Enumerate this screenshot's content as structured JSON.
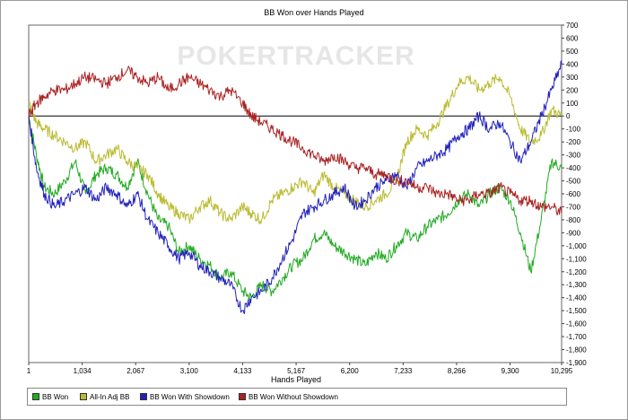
{
  "chart_data": {
    "type": "line",
    "title": "BB Won over Hands Played",
    "xlabel": "Hands Played",
    "ylabel": "",
    "watermark": "POKERTRACKER",
    "xlim": [
      1,
      10295
    ],
    "ylim": [
      -1900,
      700
    ],
    "x_ticks": [
      "1",
      "1,034",
      "2,067",
      "3,100",
      "4,133",
      "5,167",
      "6,200",
      "7,233",
      "8,266",
      "9,300",
      "10,295"
    ],
    "x_tick_values": [
      1,
      1034,
      2067,
      3100,
      4133,
      5167,
      6200,
      7233,
      8266,
      9300,
      10295
    ],
    "y_ticks": [
      "700",
      "600",
      "500",
      "400",
      "300",
      "200",
      "100",
      "0",
      "-100",
      "-200",
      "-300",
      "-400",
      "-500",
      "-600",
      "-700",
      "-800",
      "-900",
      "-1,000",
      "-1,100",
      "-1,200",
      "-1,300",
      "-1,400",
      "-1,500",
      "-1,600",
      "-1,700",
      "-1,800",
      "-1,900"
    ],
    "y_tick_values": [
      700,
      600,
      500,
      400,
      300,
      200,
      100,
      0,
      -100,
      -200,
      -300,
      -400,
      -500,
      -600,
      -700,
      -800,
      -900,
      -1000,
      -1100,
      -1200,
      -1300,
      -1400,
      -1500,
      -1600,
      -1700,
      -1800,
      -1900
    ],
    "legend_position": "bottom",
    "series": [
      {
        "name": "BB Won",
        "color": "#22aa22",
        "x": [
          1,
          150,
          300,
          500,
          700,
          900,
          1100,
          1300,
          1500,
          1700,
          1900,
          2100,
          2300,
          2500,
          2700,
          2900,
          3100,
          3300,
          3500,
          3700,
          3900,
          4133,
          4300,
          4500,
          4700,
          4900,
          5100,
          5300,
          5500,
          5700,
          5900,
          6100,
          6300,
          6500,
          6700,
          6900,
          7100,
          7300,
          7500,
          7700,
          7900,
          8100,
          8300,
          8500,
          8700,
          8900,
          9100,
          9300,
          9500,
          9700,
          9900,
          10100,
          10295
        ],
        "values": [
          0,
          -300,
          -550,
          -600,
          -500,
          -350,
          -600,
          -450,
          -400,
          -450,
          -550,
          -350,
          -600,
          -800,
          -850,
          -1050,
          -1000,
          -1100,
          -1150,
          -1250,
          -1200,
          -1350,
          -1400,
          -1300,
          -1350,
          -1250,
          -1150,
          -1100,
          -950,
          -900,
          -1000,
          -1050,
          -1100,
          -1150,
          -1050,
          -1100,
          -1000,
          -900,
          -950,
          -850,
          -800,
          -750,
          -650,
          -600,
          -700,
          -600,
          -550,
          -650,
          -900,
          -1200,
          -800,
          -350,
          -400
        ]
      },
      {
        "name": "All-In Adj BB",
        "color": "#bbbb33",
        "x": [
          1,
          150,
          300,
          500,
          700,
          900,
          1100,
          1300,
          1500,
          1700,
          1900,
          2100,
          2300,
          2500,
          2700,
          2900,
          3100,
          3300,
          3500,
          3700,
          3900,
          4133,
          4300,
          4500,
          4700,
          4900,
          5100,
          5300,
          5500,
          5700,
          5900,
          6100,
          6300,
          6500,
          6700,
          6900,
          7100,
          7300,
          7500,
          7700,
          7900,
          8100,
          8300,
          8500,
          8700,
          8900,
          9100,
          9300,
          9500,
          9700,
          9900,
          10100,
          10295
        ],
        "values": [
          100,
          -50,
          -100,
          -150,
          -200,
          -250,
          -200,
          -350,
          -300,
          -250,
          -350,
          -400,
          -450,
          -600,
          -700,
          -750,
          -800,
          -700,
          -650,
          -750,
          -800,
          -700,
          -750,
          -800,
          -650,
          -600,
          -550,
          -500,
          -600,
          -450,
          -550,
          -600,
          -650,
          -700,
          -650,
          -600,
          -500,
          -200,
          -100,
          -150,
          -50,
          100,
          250,
          300,
          200,
          250,
          300,
          150,
          -100,
          -200,
          -150,
          50,
          0
        ]
      },
      {
        "name": "BB Won With Showdown",
        "color": "#2222bb",
        "x": [
          1,
          150,
          300,
          500,
          700,
          900,
          1100,
          1300,
          1500,
          1700,
          1900,
          2100,
          2300,
          2500,
          2700,
          2900,
          3100,
          3300,
          3500,
          3700,
          3900,
          4133,
          4300,
          4500,
          4700,
          4900,
          5100,
          5300,
          5500,
          5700,
          5900,
          6100,
          6300,
          6500,
          6700,
          6900,
          7100,
          7300,
          7500,
          7700,
          7900,
          8100,
          8300,
          8500,
          8700,
          8900,
          9100,
          9300,
          9500,
          9700,
          9900,
          10100,
          10295
        ],
        "values": [
          0,
          -400,
          -600,
          -700,
          -650,
          -600,
          -550,
          -650,
          -550,
          -600,
          -700,
          -600,
          -800,
          -900,
          -1000,
          -1100,
          -1050,
          -1150,
          -1200,
          -1250,
          -1300,
          -1500,
          -1400,
          -1350,
          -1250,
          -1100,
          -950,
          -750,
          -700,
          -650,
          -600,
          -550,
          -700,
          -650,
          -550,
          -500,
          -450,
          -550,
          -400,
          -350,
          -300,
          -250,
          -150,
          -100,
          0,
          -100,
          -50,
          -200,
          -350,
          -200,
          0,
          200,
          400
        ]
      },
      {
        "name": "BB Won Without Showdown",
        "color": "#aa2222",
        "x": [
          1,
          150,
          300,
          500,
          700,
          900,
          1100,
          1300,
          1500,
          1700,
          1900,
          2100,
          2300,
          2500,
          2700,
          2900,
          3100,
          3300,
          3500,
          3700,
          3900,
          4133,
          4300,
          4500,
          4700,
          4900,
          5100,
          5300,
          5500,
          5700,
          5900,
          6100,
          6300,
          6500,
          6700,
          6900,
          7100,
          7300,
          7500,
          7700,
          7900,
          8100,
          8300,
          8500,
          8700,
          8900,
          9100,
          9300,
          9500,
          9700,
          9900,
          10100,
          10295
        ],
        "values": [
          0,
          100,
          150,
          200,
          200,
          250,
          300,
          280,
          250,
          300,
          350,
          300,
          250,
          300,
          200,
          250,
          300,
          250,
          200,
          150,
          200,
          100,
          0,
          -50,
          -100,
          -150,
          -200,
          -250,
          -300,
          -350,
          -300,
          -350,
          -400,
          -400,
          -450,
          -450,
          -500,
          -500,
          -550,
          -550,
          -600,
          -600,
          -650,
          -650,
          -600,
          -600,
          -550,
          -600,
          -650,
          -650,
          -700,
          -700,
          -750
        ]
      }
    ]
  }
}
